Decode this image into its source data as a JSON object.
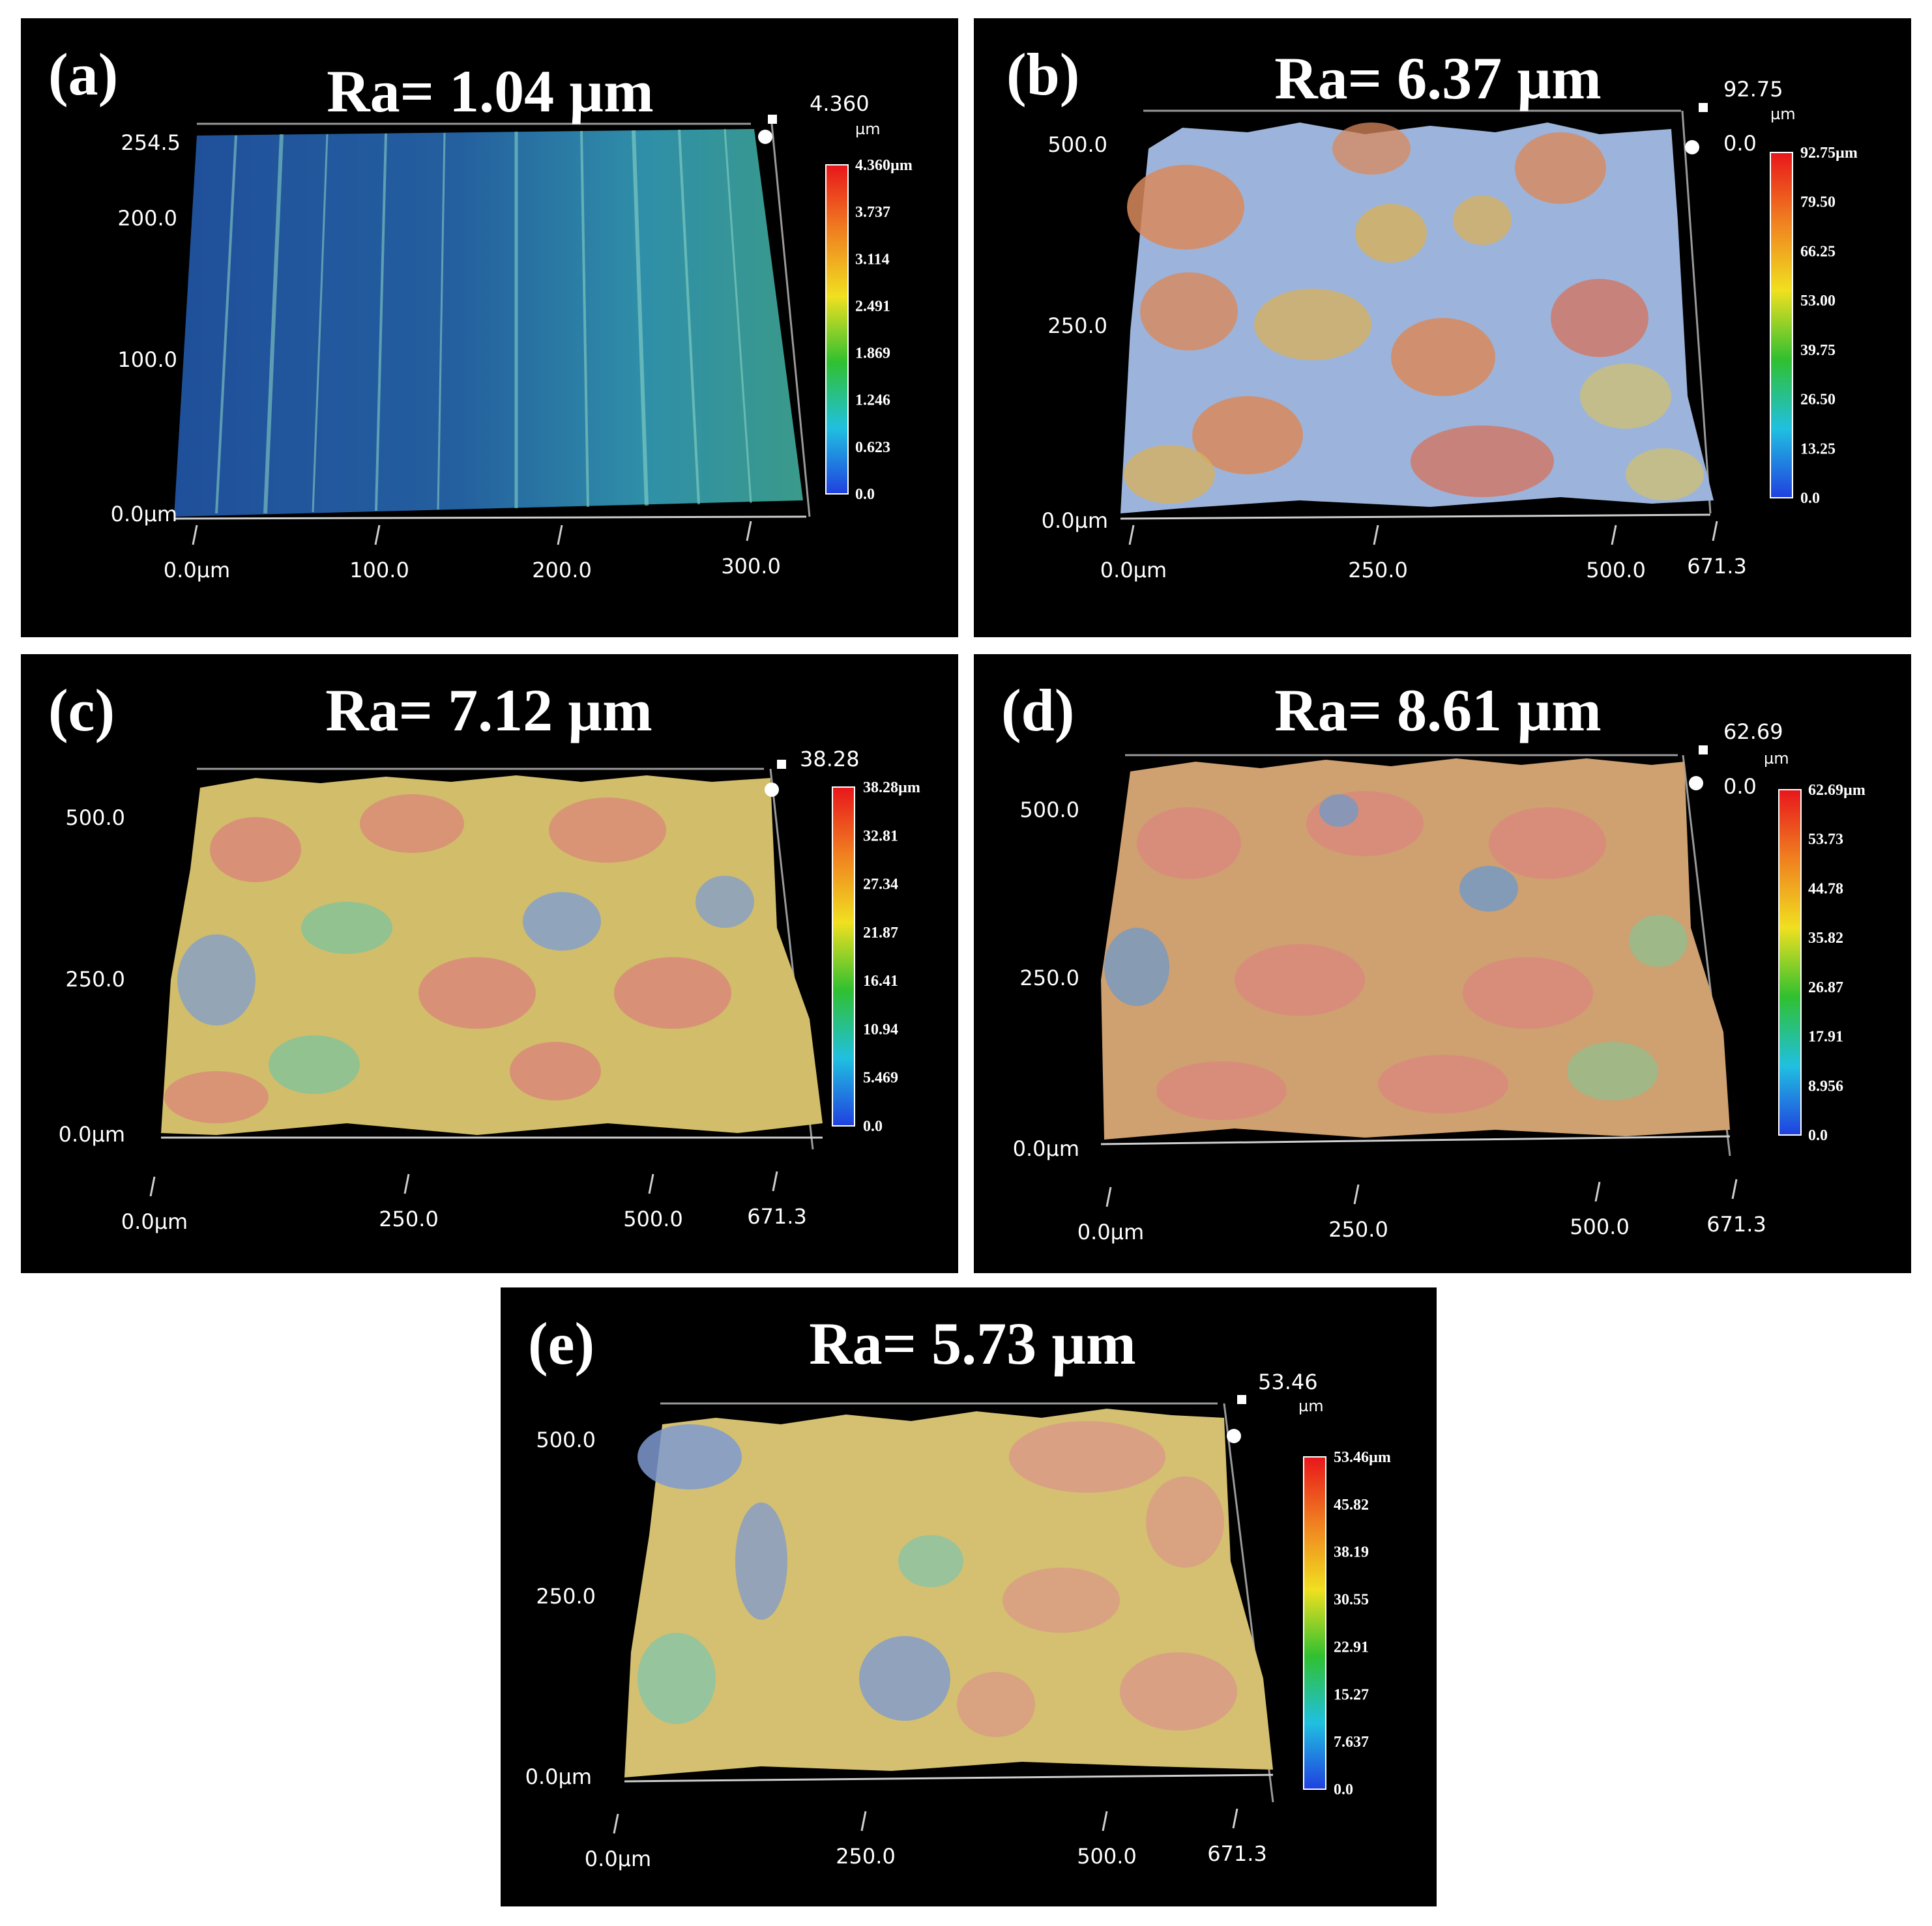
{
  "figure": {
    "panels": [
      {
        "id": "a",
        "label": "(a)",
        "title": "Ra= 1.04 µm",
        "corner_max": "4.360",
        "corner_unit": "µm",
        "corner_min": "",
        "y_ticks": [
          "0.0µm",
          "100.0",
          "200.0",
          "254.5"
        ],
        "x_ticks": [
          "0.0µm",
          "100.0",
          "200.0",
          "300.0"
        ],
        "colorbar_ticks": [
          "4.360µm",
          "3.737",
          "3.114",
          "2.491",
          "1.869",
          "1.246",
          "0.623",
          "0.0"
        ],
        "surface_palette": [
          "#1f4f9a",
          "#2a78b8",
          "#3fa3a8",
          "#8fd8c8"
        ]
      },
      {
        "id": "b",
        "label": "(b)",
        "title": "Ra= 6.37 µm",
        "corner_max": "92.75",
        "corner_unit": "µm",
        "corner_min": "0.0",
        "y_ticks": [
          "0.0µm",
          "250.0",
          "500.0"
        ],
        "x_ticks": [
          "0.0µm",
          "250.0",
          "500.0",
          "671.3"
        ],
        "colorbar_ticks": [
          "92.75µm",
          "79.50",
          "66.25",
          "53.00",
          "39.75",
          "26.50",
          "13.25",
          "0.0"
        ],
        "surface_palette": [
          "#8ea8d8",
          "#9cc6d6",
          "#c9c06a",
          "#d98a5c"
        ]
      },
      {
        "id": "c",
        "label": "(c)",
        "title": "Ra= 7.12 µm",
        "corner_max": "38.28",
        "corner_unit": "",
        "corner_min": "",
        "y_ticks": [
          "0.0µm",
          "250.0",
          "500.0"
        ],
        "x_ticks": [
          "0.0µm",
          "250.0",
          "500.0",
          "671.3"
        ],
        "colorbar_ticks": [
          "38.28µm",
          "32.81",
          "27.34",
          "21.87",
          "16.41",
          "10.94",
          "5.469",
          "0.0"
        ],
        "surface_palette": [
          "#7f9fd0",
          "#7cc49e",
          "#d2bd6a",
          "#d98a78"
        ]
      },
      {
        "id": "d",
        "label": "(d)",
        "title": "Ra= 8.61 µm",
        "corner_max": "62.69",
        "corner_unit": "µm",
        "corner_min": "0.0",
        "y_ticks": [
          "0.0µm",
          "250.0",
          "500.0"
        ],
        "x_ticks": [
          "0.0µm",
          "250.0",
          "500.0",
          "671.3"
        ],
        "colorbar_ticks": [
          "62.69µm",
          "53.73",
          "44.78",
          "35.82",
          "26.87",
          "17.91",
          "8.956",
          "0.0"
        ],
        "surface_palette": [
          "#6f9ac8",
          "#8ec090",
          "#cfa070",
          "#d98a7c"
        ]
      },
      {
        "id": "e",
        "label": "(e)",
        "title": "Ra= 5.73 µm",
        "corner_max": "53.46",
        "corner_unit": "µm",
        "corner_min": "",
        "y_ticks": [
          "0.0µm",
          "250.0",
          "500.0"
        ],
        "x_ticks": [
          "0.0µm",
          "250.0",
          "500.0",
          "671.3"
        ],
        "colorbar_ticks": [
          "53.46µm",
          "45.82",
          "38.19",
          "30.55",
          "22.91",
          "15.27",
          "7.637",
          "0.0"
        ],
        "surface_palette": [
          "#7f9ad0",
          "#86c4a8",
          "#d4c070",
          "#d99a86"
        ]
      }
    ],
    "colorbar_colors": [
      "#e8161c",
      "#f08020",
      "#f0e020",
      "#30c030",
      "#20c0e0",
      "#2040e0"
    ]
  }
}
